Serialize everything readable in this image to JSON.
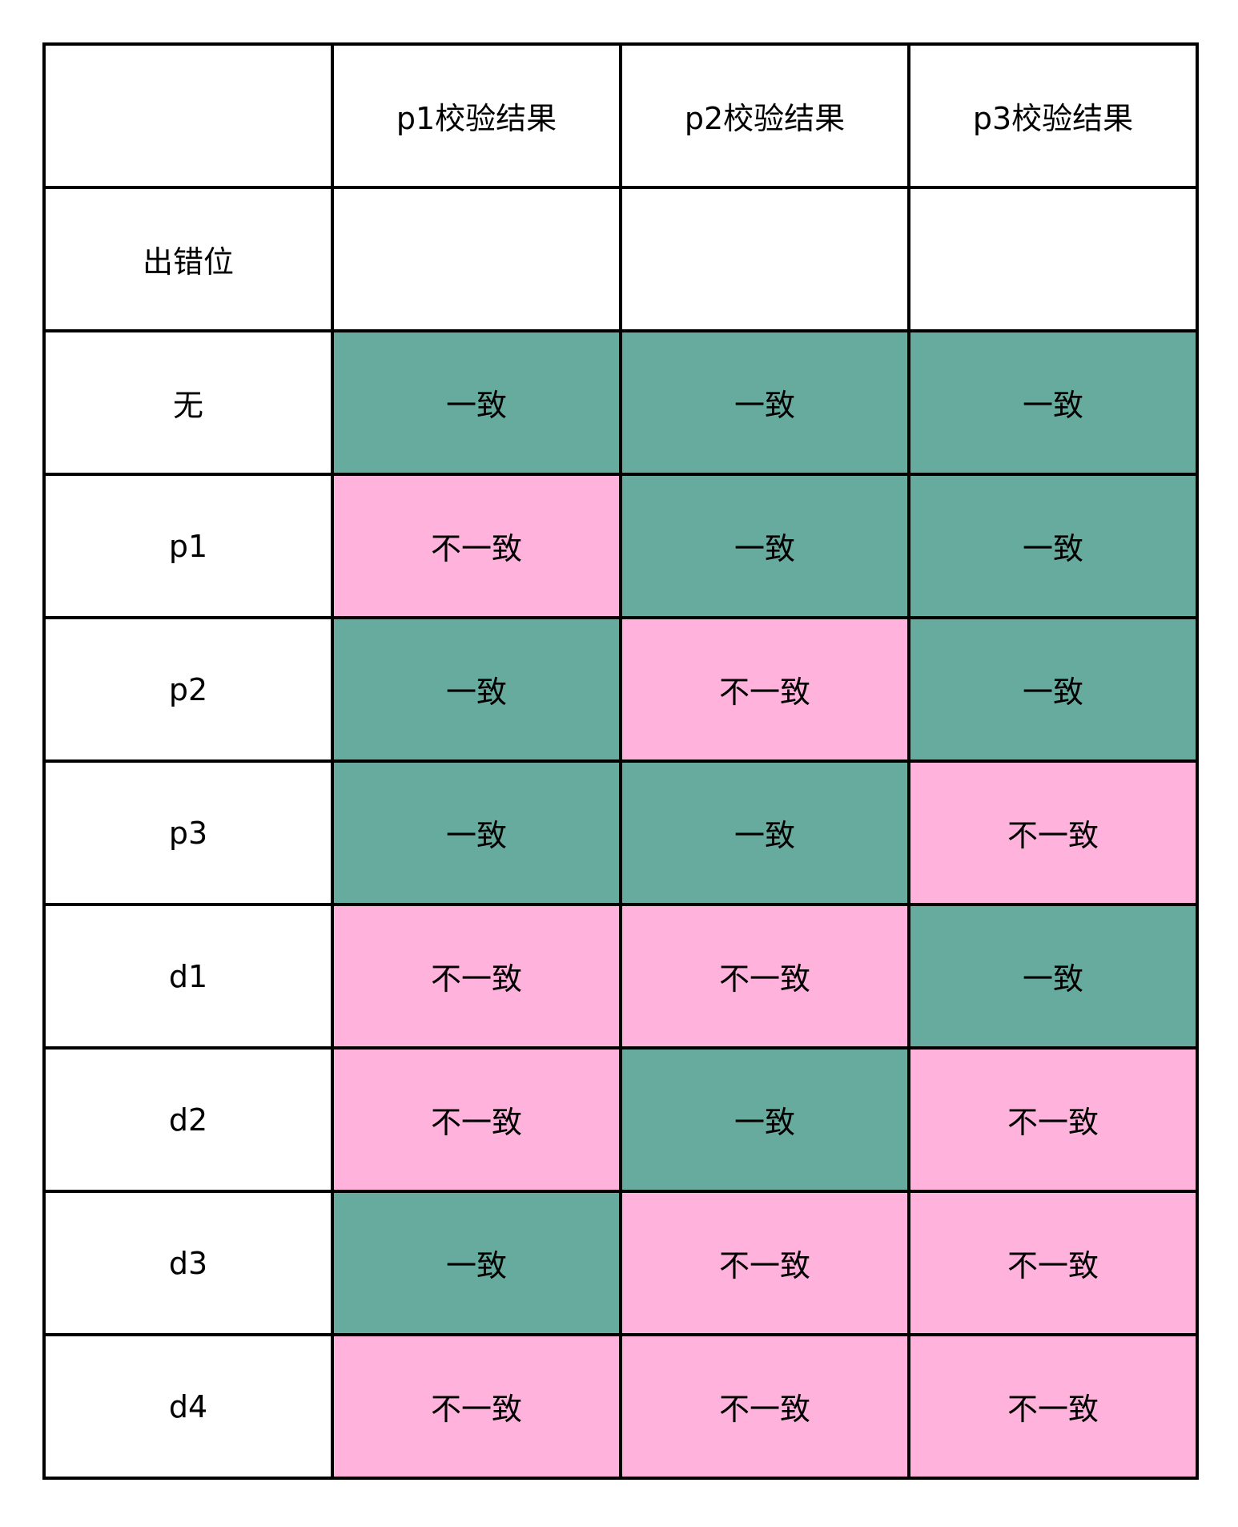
{
  "header": [
    "",
    "p1校验结果",
    "p2校验结果",
    "p3校验结果"
  ],
  "colors": {
    "consistent": "#67AB9F",
    "inconsistent": "#FFB2DB"
  },
  "subheader": "出错位",
  "rows": [
    {
      "label": "无",
      "cells": [
        "一致",
        "一致",
        "一致"
      ]
    },
    {
      "label": "p1",
      "cells": [
        "不一致",
        "一致",
        "一致"
      ]
    },
    {
      "label": "p2",
      "cells": [
        "一致",
        "不一致",
        "一致"
      ]
    },
    {
      "label": "p3",
      "cells": [
        "一致",
        "一致",
        "不一致"
      ]
    },
    {
      "label": "d1",
      "cells": [
        "不一致",
        "不一致",
        "一致"
      ]
    },
    {
      "label": "d2",
      "cells": [
        "不一致",
        "一致",
        "不一致"
      ]
    },
    {
      "label": "d3",
      "cells": [
        "一致",
        "不一致",
        "不一致"
      ]
    },
    {
      "label": "d4",
      "cells": [
        "不一致",
        "不一致",
        "不一致"
      ]
    }
  ]
}
